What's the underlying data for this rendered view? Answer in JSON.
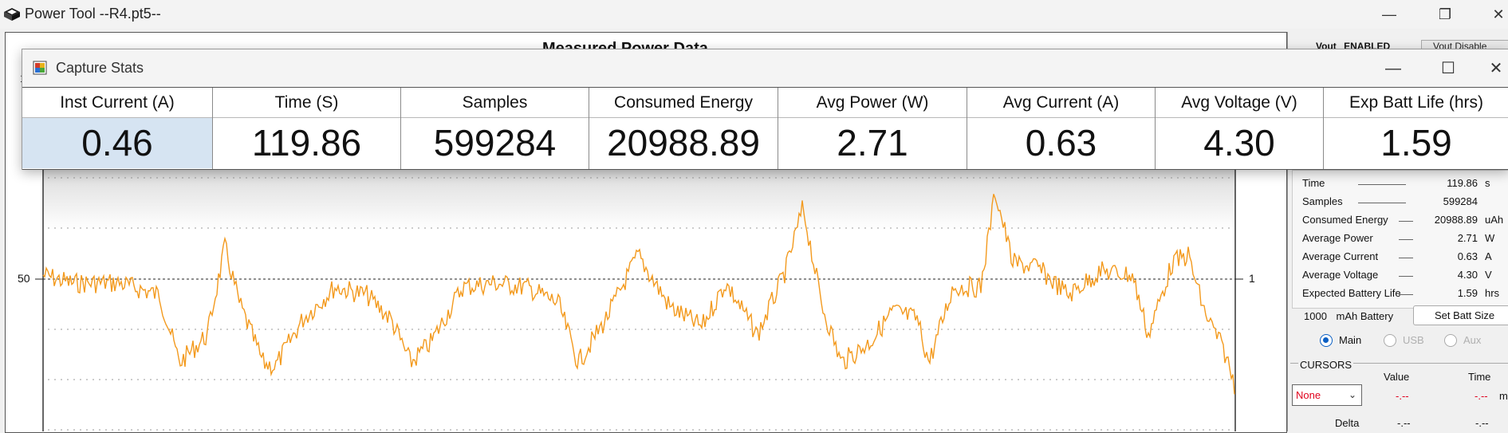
{
  "app": {
    "title": "Power Tool --R4.pt5--"
  },
  "plot": {
    "heading": "Measured Power Data",
    "y_left_label": "50",
    "y_right_label": "1",
    "top_left_label": "1"
  },
  "capture_stats": {
    "title": "Capture Stats",
    "columns": [
      {
        "header": "Inst Current (A)",
        "value": "0.46"
      },
      {
        "header": "Time (S)",
        "value": "119.86"
      },
      {
        "header": "Samples",
        "value": "599284"
      },
      {
        "header": "Consumed Energy",
        "value": "20988.89"
      },
      {
        "header": "Avg Power (W)",
        "value": "2.71"
      },
      {
        "header": "Avg Current (A)",
        "value": "0.63"
      },
      {
        "header": "Avg Voltage (V)",
        "value": "4.30"
      },
      {
        "header": "Exp Batt Life (hrs)",
        "value": "1.59"
      }
    ]
  },
  "side_panel": {
    "vout_label": "Vout",
    "vout_status": "ENABLED",
    "vout_button": "Vout Disable",
    "stats": [
      {
        "label": "Time",
        "value": "119.86",
        "unit": "s"
      },
      {
        "label": "Samples",
        "value": "599284",
        "unit": ""
      },
      {
        "label": "Consumed Energy",
        "value": "20988.89",
        "unit": "uAh"
      },
      {
        "label": "Average Power",
        "value": "2.71",
        "unit": "W"
      },
      {
        "label": "Average Current",
        "value": "0.63",
        "unit": "A"
      },
      {
        "label": "Average Voltage",
        "value": "4.30",
        "unit": "V"
      },
      {
        "label": "Expected Battery Life",
        "value": "1.59",
        "unit": "hrs"
      }
    ],
    "battery_capacity": "1000",
    "battery_unit": "mAh Battery",
    "set_batt_button": "Set Batt Size",
    "channels": [
      {
        "label": "Main",
        "selected": true,
        "enabled": true
      },
      {
        "label": "USB",
        "selected": false,
        "enabled": false
      },
      {
        "label": "Aux",
        "selected": false,
        "enabled": false
      }
    ],
    "cursors": {
      "title": "CURSORS",
      "value_header": "Value",
      "time_header": "Time",
      "selection": "None",
      "value": "-.--",
      "time": "-.--",
      "time_unit": "m",
      "delta_label": "Delta",
      "delta_value": "-.--",
      "delta_time": "-.--"
    }
  }
}
